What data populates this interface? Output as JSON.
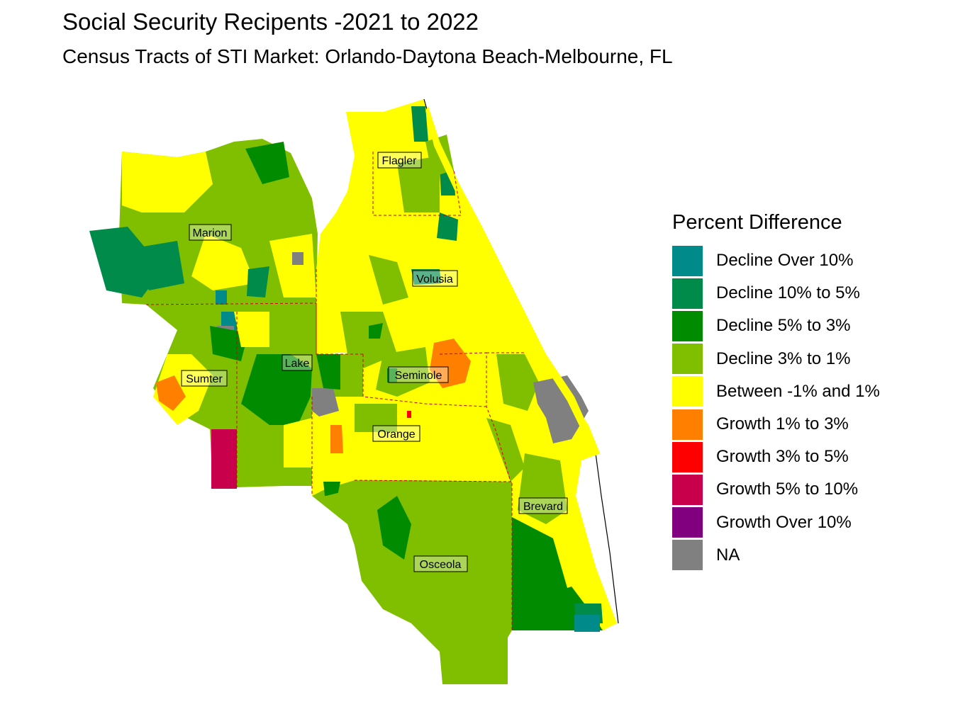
{
  "title": "Social Security Recipents -2021 to 2022",
  "subtitle": "Census Tracts of STI Market: Orlando-Daytona Beach-Melbourne, FL",
  "colors": {
    "decline_over_10": "#008B8B",
    "decline_10_5": "#008B4A",
    "decline_5_3": "#008B00",
    "decline_3_1": "#7FBF00",
    "between": "#FFFF00",
    "growth_1_3": "#FF8000",
    "growth_3_5": "#FF0000",
    "growth_5_10": "#C8004B",
    "growth_over_10": "#800080",
    "na": "#808080",
    "county_border": "#CC0000"
  },
  "legend": {
    "title": "Percent Difference",
    "items": [
      {
        "label": "Decline Over 10%",
        "color": "#008B8B"
      },
      {
        "label": "Decline 10% to 5%",
        "color": "#008B4A"
      },
      {
        "label": "Decline 5% to 3%",
        "color": "#008B00"
      },
      {
        "label": "Decline 3% to 1%",
        "color": "#7FBF00"
      },
      {
        "label": "Between -1% and 1%",
        "color": "#FFFF00"
      },
      {
        "label": "Growth 1% to 3%",
        "color": "#FF8000"
      },
      {
        "label": "Growth 3% to 5%",
        "color": "#FF0000"
      },
      {
        "label": "Growth 5% to 10%",
        "color": "#C8004B"
      },
      {
        "label": "Growth Over 10%",
        "color": "#800080"
      },
      {
        "label": "NA",
        "color": "#808080"
      }
    ]
  },
  "counties": [
    "Flagler",
    "Marion",
    "Volusia",
    "Lake",
    "Seminole",
    "Sumter",
    "Orange",
    "Brevard",
    "Osceola"
  ]
}
